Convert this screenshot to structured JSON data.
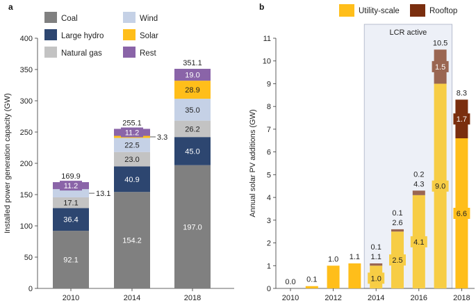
{
  "chart_data": [
    {
      "panel": "a",
      "type": "bar",
      "stacked": true,
      "ylabel": "Installed power generation capacity (GW)",
      "ylim": [
        0,
        400
      ],
      "yticks": [
        0,
        50,
        100,
        150,
        200,
        250,
        300,
        350,
        400
      ],
      "categories": [
        "2010",
        "2014",
        "2018"
      ],
      "totals": [
        "169.9",
        "255.1",
        "351.1"
      ],
      "series": [
        {
          "name": "Coal",
          "color": "#808080",
          "label_color": "#ffffff",
          "values": [
            92.1,
            154.2,
            197.0
          ],
          "labels": [
            "92.1",
            "154.2",
            "197.0"
          ]
        },
        {
          "name": "Large hydro",
          "color": "#2d4670",
          "label_color": "#ffffff",
          "values": [
            36.4,
            40.9,
            45.0
          ],
          "labels": [
            "36.4",
            "40.9",
            "45.0"
          ]
        },
        {
          "name": "Natural gas",
          "color": "#c3c3c3",
          "label_color": "#222222",
          "values": [
            17.1,
            23.0,
            26.2
          ],
          "labels": [
            "17.1",
            "23.0",
            "26.2"
          ]
        },
        {
          "name": "Wind",
          "color": "#c5d1e6",
          "label_color": "#222222",
          "values": [
            13.1,
            22.5,
            35.0
          ],
          "labels": [
            "13.1",
            "22.5",
            "35.0"
          ]
        },
        {
          "name": "Solar",
          "color": "#ffbe1a",
          "label_color": "#222222",
          "values": [
            0.0,
            3.3,
            28.9
          ],
          "labels": [
            "",
            "3.3",
            "28.9"
          ]
        },
        {
          "name": "Rest",
          "color": "#8a64a8",
          "label_color": "#ffffff",
          "values": [
            11.2,
            11.2,
            19.0
          ],
          "labels": [
            "11.2",
            "11.2",
            "19.0"
          ]
        }
      ],
      "legend": [
        {
          "name": "Coal",
          "color": "#808080"
        },
        {
          "name": "Wind",
          "color": "#c5d1e6"
        },
        {
          "name": "Large hydro",
          "color": "#2d4670"
        },
        {
          "name": "Solar",
          "color": "#ffbe1a"
        },
        {
          "name": "Natural gas",
          "color": "#c3c3c3"
        },
        {
          "name": "Rest",
          "color": "#8a64a8"
        }
      ]
    },
    {
      "panel": "b",
      "type": "bar",
      "stacked": true,
      "ylabel": "Annual solar PV additions (GW)",
      "ylim": [
        0,
        11
      ],
      "yticks": [
        0,
        1,
        2,
        3,
        4,
        5,
        6,
        7,
        8,
        9,
        10,
        11
      ],
      "x": [
        2010,
        2011,
        2012,
        2013,
        2014,
        2015,
        2016,
        2017,
        2018
      ],
      "xticks": [
        "2010",
        "2012",
        "2014",
        "2016",
        "2018"
      ],
      "annotation": {
        "text": "LCR active",
        "from": 2014,
        "to": 2017
      },
      "legend": [
        {
          "name": "Utility-scale",
          "color": "#ffbe1a"
        },
        {
          "name": "Rooftop",
          "color": "#7a2e0e"
        }
      ],
      "series": [
        {
          "name": "Utility-scale",
          "color": "#ffbe1a",
          "values": [
            0.0,
            0.1,
            1.0,
            1.1,
            1.0,
            2.5,
            4.1,
            9.0,
            6.6
          ]
        },
        {
          "name": "Rooftop",
          "color": "#7a2e0e",
          "values": [
            0.0,
            0.0,
            0.0,
            0.0,
            0.1,
            0.1,
            0.2,
            1.5,
            1.7
          ]
        }
      ],
      "totals": [
        "0.0",
        "0.1",
        "1.0",
        "1.1",
        "1.1",
        "2.6",
        "4.3",
        "10.5",
        "8.3"
      ],
      "inner_labels": [
        {
          "year": 2014,
          "series": "Utility-scale",
          "text": "1.0"
        },
        {
          "year": 2015,
          "series": "Utility-scale",
          "text": "2.5"
        },
        {
          "year": 2016,
          "series": "Utility-scale",
          "text": "4.1"
        },
        {
          "year": 2017,
          "series": "Utility-scale",
          "text": "9.0"
        },
        {
          "year": 2018,
          "series": "Utility-scale",
          "text": "6.6"
        },
        {
          "year": 2017,
          "series": "Rooftop",
          "text": "1.5"
        },
        {
          "year": 2018,
          "series": "Rooftop",
          "text": "1.7"
        }
      ],
      "above_labels": [
        {
          "year": 2014,
          "text": "0.1"
        },
        {
          "year": 2015,
          "text": "0.1"
        },
        {
          "year": 2016,
          "text": "0.2"
        }
      ]
    }
  ]
}
